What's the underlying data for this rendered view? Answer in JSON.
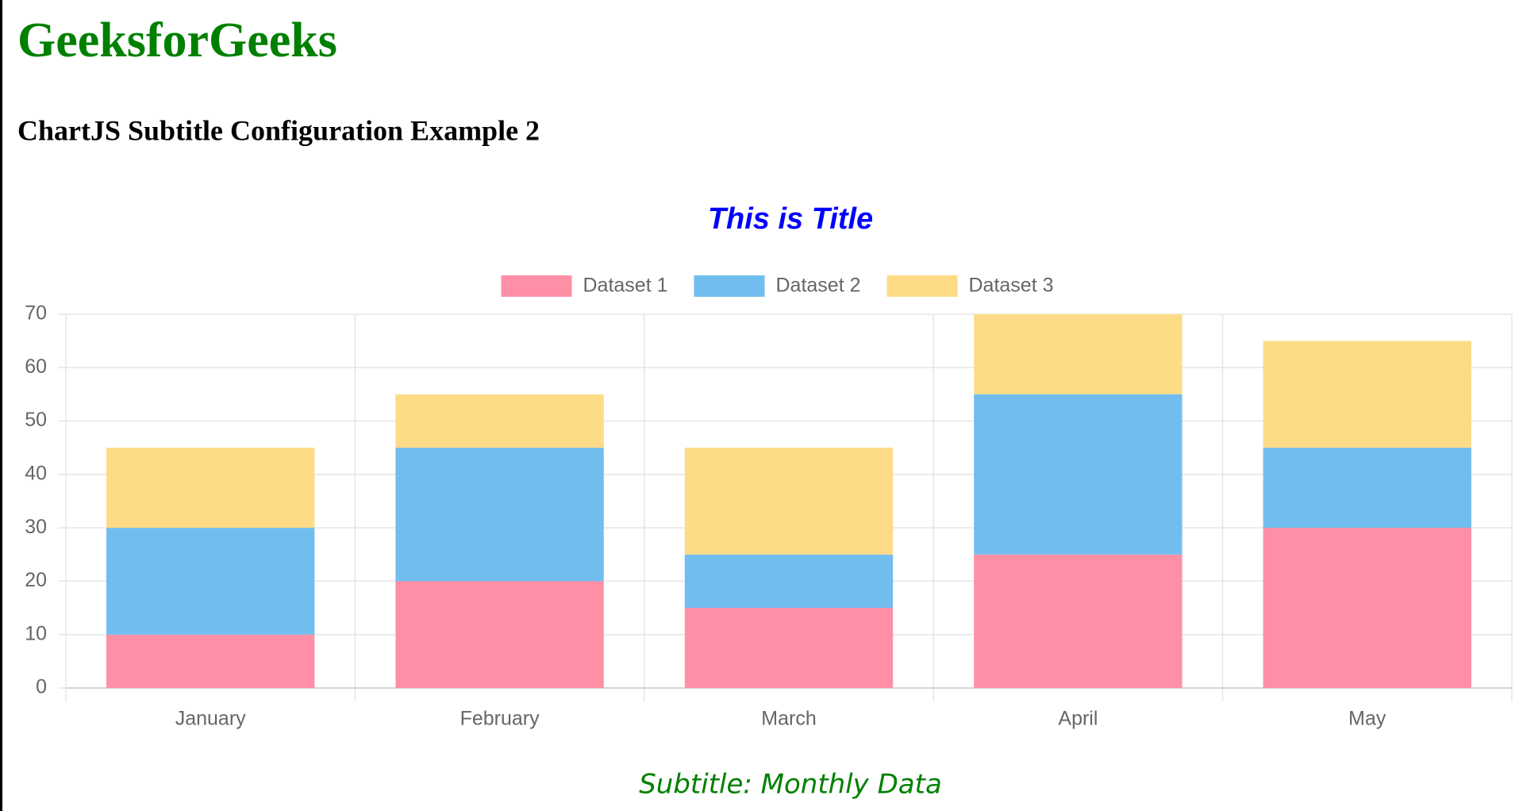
{
  "header": {
    "title": "GeeksforGeeks",
    "heading": "ChartJS Subtitle Configuration Example 2"
  },
  "chart_data": {
    "type": "stacked_bar",
    "title": "This is Title",
    "subtitle": "Subtitle: Monthly Data",
    "categories": [
      "January",
      "February",
      "March",
      "April",
      "May"
    ],
    "series": [
      {
        "name": "Dataset 1",
        "color": "#ff8fa6",
        "values": [
          10,
          20,
          15,
          25,
          30
        ]
      },
      {
        "name": "Dataset 2",
        "color": "#72bdef",
        "values": [
          20,
          25,
          10,
          30,
          15
        ]
      },
      {
        "name": "Dataset 3",
        "color": "#fddb87",
        "values": [
          15,
          10,
          20,
          15,
          20
        ]
      }
    ],
    "ylim": [
      0,
      70
    ],
    "yticks": [
      0,
      10,
      20,
      30,
      40,
      50,
      60,
      70
    ],
    "grid": true,
    "legend": "top"
  }
}
